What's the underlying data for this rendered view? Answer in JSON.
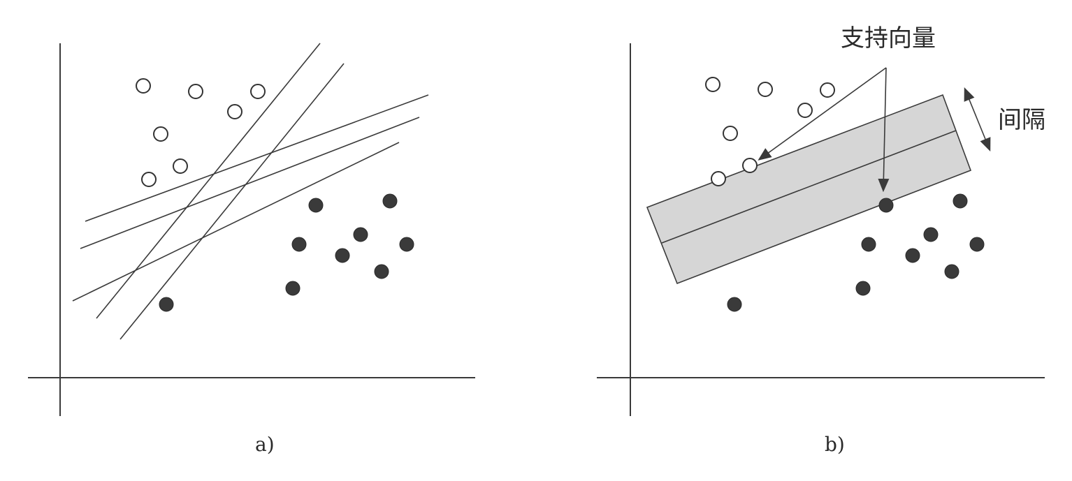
{
  "panels": [
    {
      "id": "a",
      "caption": "a)",
      "open_points": [
        [
          205,
          123
        ],
        [
          280,
          131
        ],
        [
          369,
          131
        ],
        [
          336,
          160
        ],
        [
          230,
          192
        ],
        [
          258,
          238
        ],
        [
          213,
          257
        ]
      ],
      "filled_points": [
        [
          452,
          294
        ],
        [
          558,
          288
        ],
        [
          516,
          336
        ],
        [
          428,
          350
        ],
        [
          582,
          350
        ],
        [
          490,
          366
        ],
        [
          546,
          389
        ],
        [
          419,
          413
        ],
        [
          238,
          436
        ]
      ]
    },
    {
      "id": "b",
      "caption": "b)",
      "open_points": [
        [
          1020,
          121
        ],
        [
          1095,
          128
        ],
        [
          1184,
          129
        ],
        [
          1152,
          158
        ],
        [
          1045,
          191
        ],
        [
          1073,
          237
        ],
        [
          1028,
          256
        ]
      ],
      "filled_points": [
        [
          1268,
          294
        ],
        [
          1374,
          288
        ],
        [
          1332,
          336
        ],
        [
          1243,
          350
        ],
        [
          1398,
          350
        ],
        [
          1306,
          366
        ],
        [
          1362,
          389
        ],
        [
          1235,
          413
        ],
        [
          1051,
          436
        ]
      ],
      "annotations": {
        "support_vectors": "支持向量",
        "margin": "间隔"
      }
    }
  ]
}
